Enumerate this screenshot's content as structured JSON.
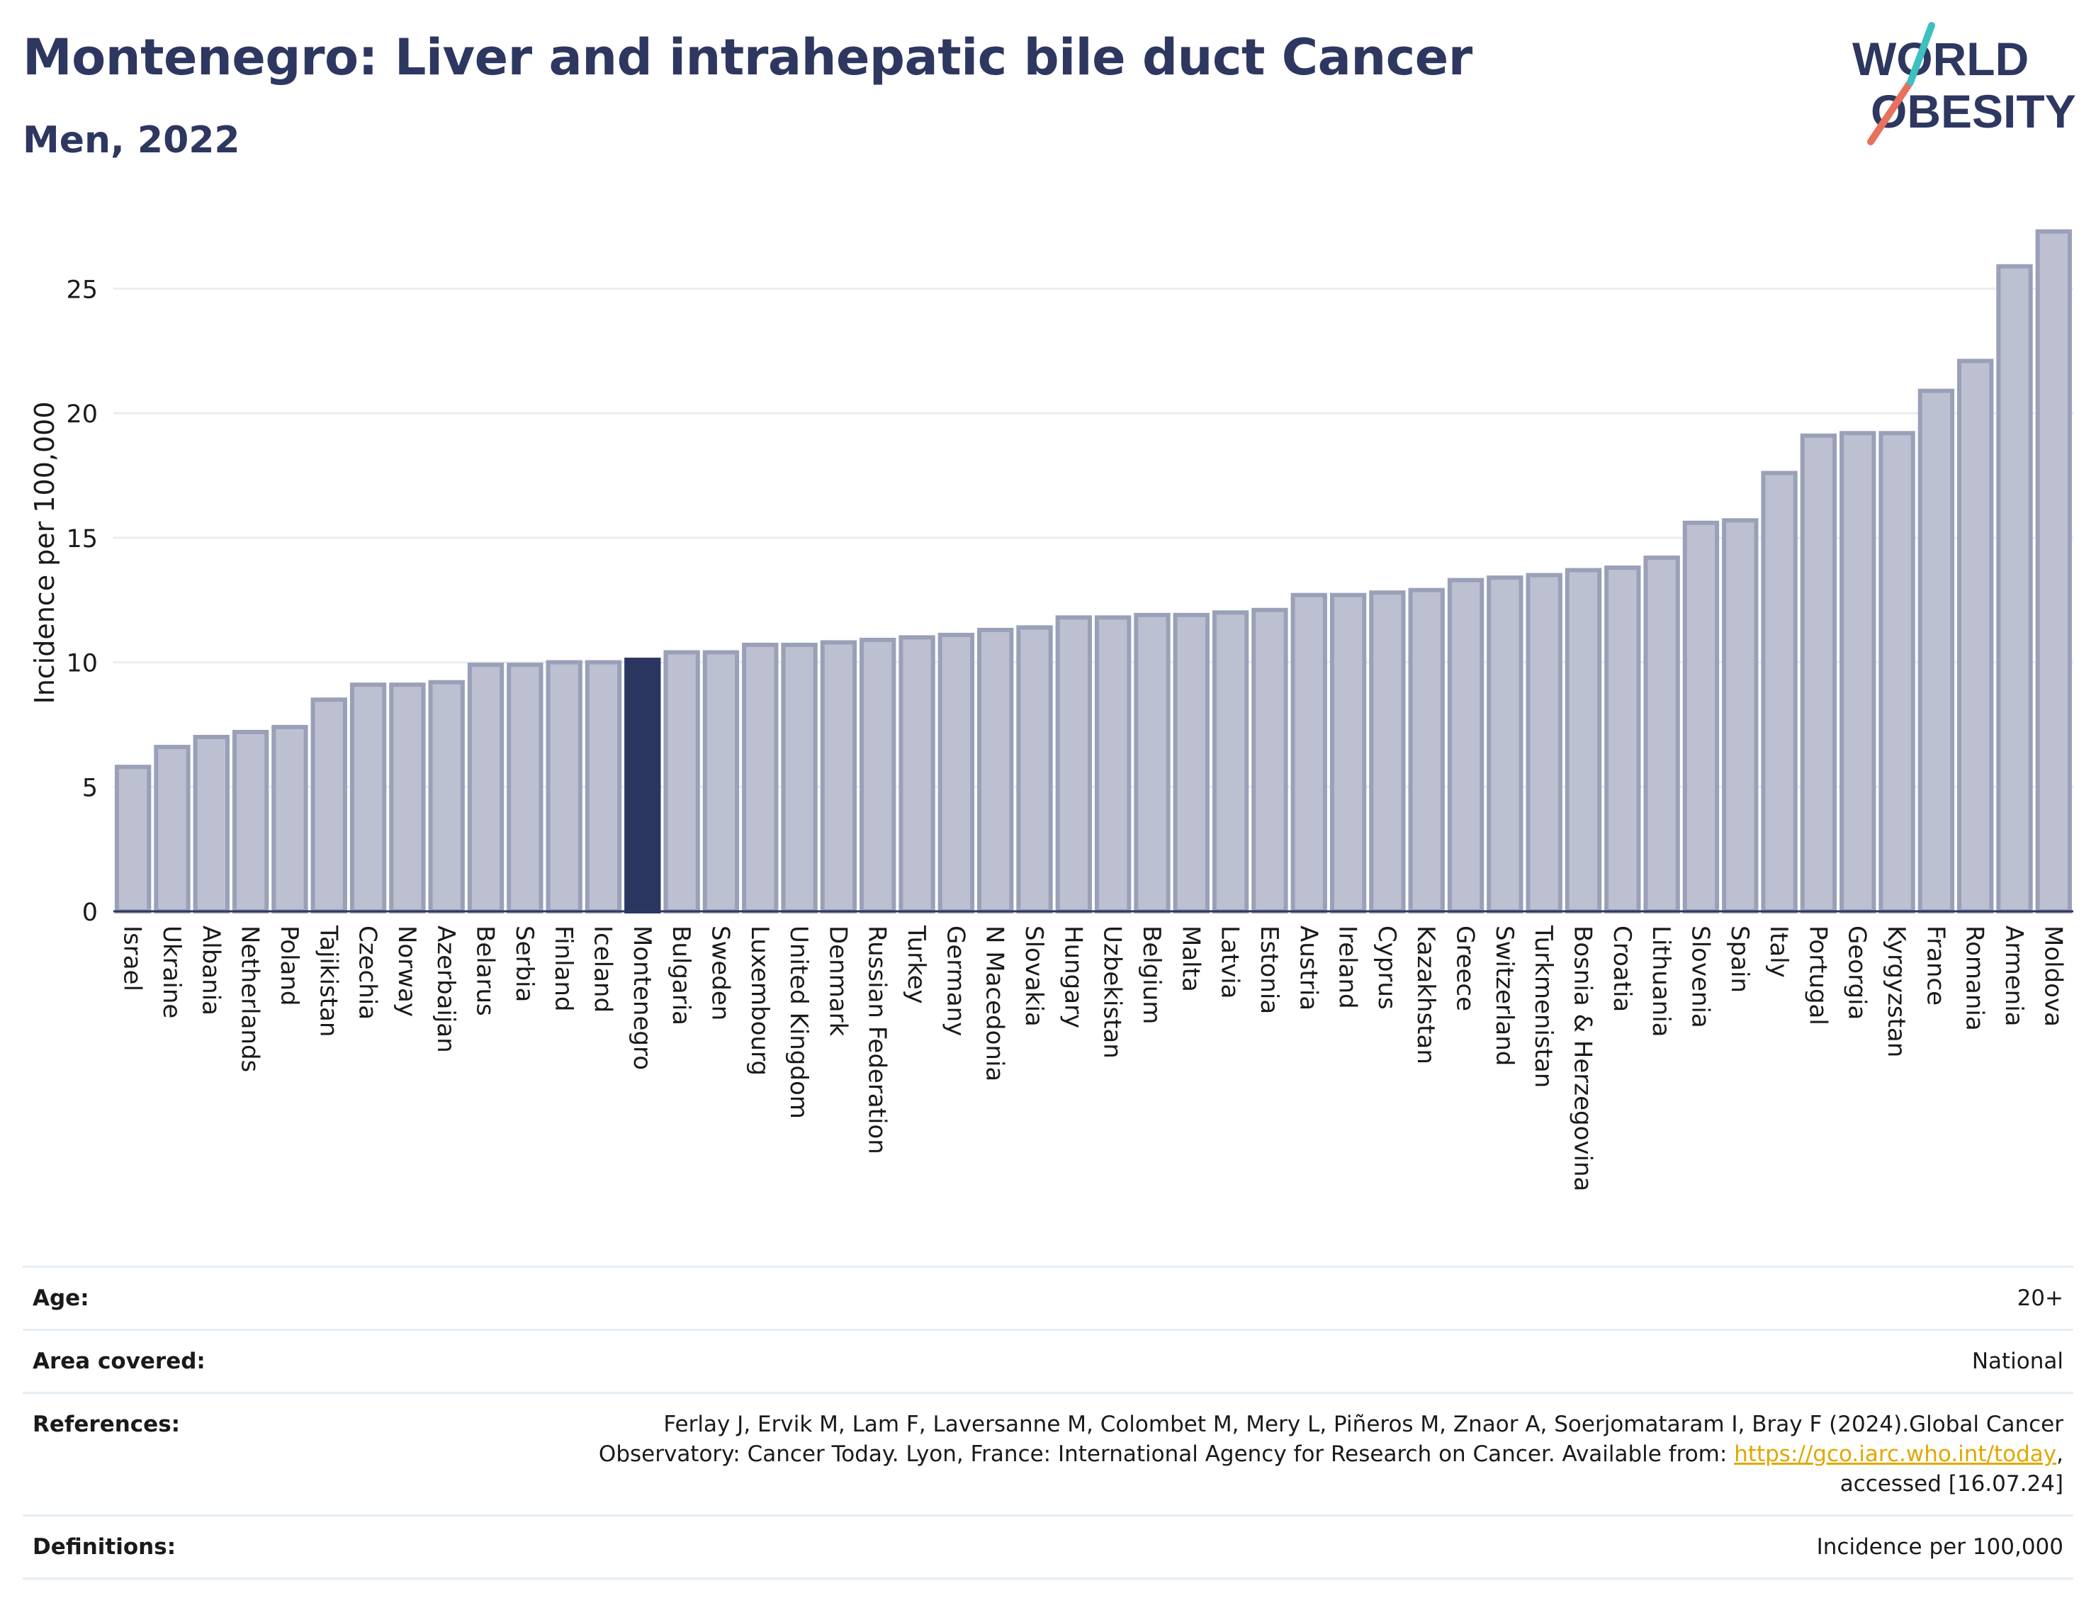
{
  "header": {
    "title": "Montenegro: Liver and intrahepatic bile duct Cancer",
    "subtitle": "Men, 2022"
  },
  "logo": {
    "line1": "WORLD",
    "line2": "OBESITY"
  },
  "chart_data": {
    "type": "bar",
    "title": "Montenegro: Liver and intrahepatic bile duct Cancer",
    "subtitle": "Men, 2022",
    "xlabel": "",
    "ylabel": "Incidence per 100,000",
    "ylim": [
      0,
      28
    ],
    "yticks": [
      0,
      5,
      10,
      15,
      20,
      25
    ],
    "grid": true,
    "highlight": "Montenegro",
    "categories": [
      "Israel",
      "Ukraine",
      "Albania",
      "Netherlands",
      "Poland",
      "Tajikistan",
      "Czechia",
      "Norway",
      "Azerbaijan",
      "Belarus",
      "Serbia",
      "Finland",
      "Iceland",
      "Montenegro",
      "Bulgaria",
      "Sweden",
      "Luxembourg",
      "United Kingdom",
      "Denmark",
      "Russian Federation",
      "Turkey",
      "Germany",
      "N Macedonia",
      "Slovakia",
      "Hungary",
      "Uzbekistan",
      "Belgium",
      "Malta",
      "Latvia",
      "Estonia",
      "Austria",
      "Ireland",
      "Cyprus",
      "Kazakhstan",
      "Greece",
      "Switzerland",
      "Turkmenistan",
      "Bosnia & Herzegovina",
      "Croatia",
      "Lithuania",
      "Slovenia",
      "Spain",
      "Italy",
      "Portugal",
      "Georgia",
      "Kyrgyzstan",
      "France",
      "Romania",
      "Armenia",
      "Moldova"
    ],
    "values": [
      5.8,
      6.6,
      7.0,
      7.2,
      7.4,
      8.5,
      9.1,
      9.1,
      9.2,
      9.9,
      9.9,
      10.0,
      10.0,
      10.1,
      10.4,
      10.4,
      10.7,
      10.7,
      10.8,
      10.9,
      11.0,
      11.1,
      11.3,
      11.4,
      11.8,
      11.8,
      11.9,
      11.9,
      12.0,
      12.1,
      12.7,
      12.7,
      12.8,
      12.9,
      13.3,
      13.4,
      13.5,
      13.7,
      13.8,
      14.2,
      15.6,
      15.7,
      17.6,
      19.1,
      19.2,
      19.2,
      20.9,
      22.1,
      25.9,
      27.3
    ],
    "colors": {
      "bar": "#bcc0d0",
      "bar_edge": "#9aa0b8",
      "highlight": "#2b3660",
      "grid": "#e8edf3"
    }
  },
  "meta": {
    "age_label": "Age:",
    "age_value": "20+",
    "area_label": "Area covered:",
    "area_value": "National",
    "references_label": "References:",
    "references_text_1": "Ferlay J, Ervik M, Lam F, Laversanne M, Colombet M, Mery L, Piñeros M, Znaor A, Soerjomataram I, Bray F (2024).Global Cancer",
    "references_text_2": "Observatory: Cancer Today. Lyon, France: International Agency for Research on Cancer. Available from: ",
    "references_link": "https://gco.iarc.who.int/today",
    "references_text_3": ",",
    "references_text_4": "accessed [16.07.24]",
    "definitions_label": "Definitions:",
    "definitions_value": "Incidence per 100,000"
  }
}
